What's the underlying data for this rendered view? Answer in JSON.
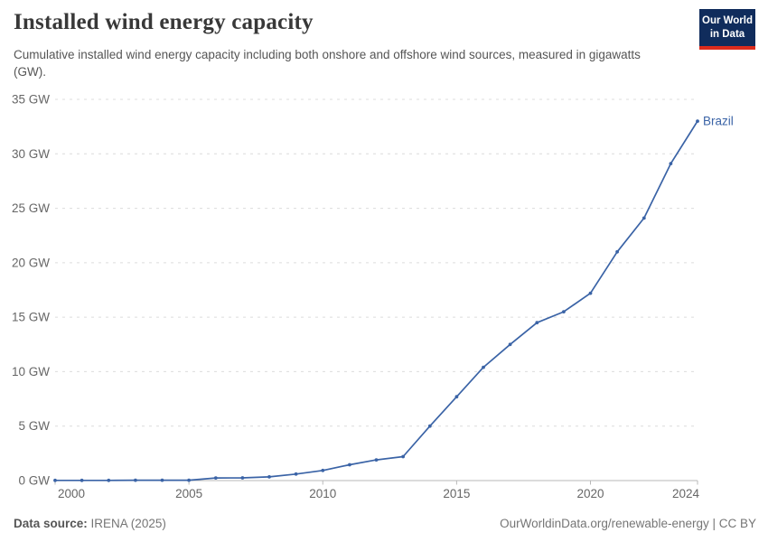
{
  "header": {
    "title": "Installed wind energy capacity",
    "subtitle": "Cumulative installed wind energy capacity including both onshore and offshore wind sources, measured in gigawatts (GW).",
    "logo": {
      "line1": "Our World",
      "line2": "in Data"
    }
  },
  "footer": {
    "source_label": "Data source:",
    "source_value": "IRENA (2025)",
    "credit": "OurWorldinData.org/renewable-energy | CC BY"
  },
  "colors": {
    "line": "#3a63a6",
    "logo_bg": "#102c5c",
    "logo_stripe": "#dc2b1c",
    "grid": "#dcdcdc",
    "axis": "#b8b8b8",
    "tick_label": "#666666",
    "title": "#383838",
    "subtitle": "#555555",
    "footer": "#757575"
  },
  "chart_data": {
    "type": "line",
    "title": "Installed wind energy capacity",
    "unit": "GW",
    "xlabel": "",
    "ylabel": "",
    "xlim": [
      2000,
      2024
    ],
    "ylim": [
      0,
      35
    ],
    "x_ticks": [
      2000,
      2005,
      2010,
      2015,
      2020,
      2024
    ],
    "y_ticks": [
      0,
      5,
      10,
      15,
      20,
      25,
      30,
      35
    ],
    "grid": "horizontal-dashed",
    "legend": "line-end-label",
    "x": [
      2000,
      2001,
      2002,
      2003,
      2004,
      2005,
      2006,
      2007,
      2008,
      2009,
      2010,
      2011,
      2012,
      2013,
      2014,
      2015,
      2016,
      2017,
      2018,
      2019,
      2020,
      2021,
      2022,
      2023,
      2024
    ],
    "series": [
      {
        "name": "Brazil",
        "values": [
          0.02,
          0.02,
          0.02,
          0.03,
          0.03,
          0.03,
          0.24,
          0.25,
          0.34,
          0.6,
          0.93,
          1.45,
          1.9,
          2.2,
          5.0,
          7.7,
          10.4,
          12.5,
          14.5,
          15.5,
          17.2,
          21.0,
          24.1,
          29.1,
          33.0
        ]
      }
    ]
  }
}
